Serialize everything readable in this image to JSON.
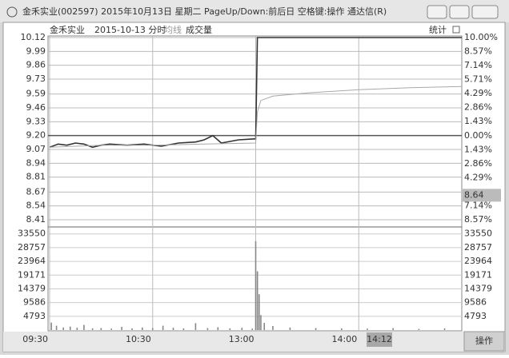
{
  "window": {
    "title": "金禾实业(002597) 2015年10月13日 星期二 PageUp/Down:前后日 空格键:操作 通达信(R)"
  },
  "header": {
    "stock": "金禾实业",
    "mode": "2015-10-13 分时",
    "avg_label": "均线",
    "vol_label": "成交量",
    "stats": "统计"
  },
  "chart_data": [
    {
      "type": "line",
      "ylim": [
        8.41,
        10.12
      ],
      "yticks": [
        10.12,
        9.99,
        9.86,
        9.73,
        9.59,
        9.46,
        9.33,
        {
          "value": 9.2,
          "label": "9.20"
        },
        9.07,
        8.94,
        8.81,
        8.67,
        8.54,
        8.41
      ],
      "y2lim": [
        -8.57,
        10
      ],
      "y2ticks": [
        {
          "value": 10,
          "label": "10.00%"
        },
        {
          "value": 8.57,
          "label": "8.57%"
        },
        {
          "value": 7.14,
          "label": "7.14%"
        },
        {
          "value": 5.71,
          "label": "5.71%"
        },
        {
          "value": 4.29,
          "label": "4.29%"
        },
        {
          "value": 2.86,
          "label": "2.86%"
        },
        {
          "value": 1.43,
          "label": "1.43%"
        },
        {
          "value": 0,
          "label": "0.00%"
        },
        {
          "value": -1.43,
          "label": "1.43%"
        },
        {
          "value": -2.86,
          "label": "2.86%"
        },
        {
          "value": -4.29,
          "label": "4.29%"
        },
        {
          "value": -7.14,
          "label": "7.14%"
        },
        {
          "value": -8.57,
          "label": "8.57%"
        }
      ],
      "crosshair": {
        "time": "14:12",
        "price": 8.64
      },
      "series": [
        {
          "color": "#333333",
          "x": [
            "09:30",
            "09:35",
            "09:40",
            "09:45",
            "09:50",
            "09:55",
            "10:00",
            "10:05",
            "10:15",
            "10:25",
            "10:35",
            "10:45",
            "10:55",
            "11:00",
            "11:05",
            "11:10",
            "11:20",
            "11:30",
            "13:01",
            "15:00"
          ],
          "values": [
            9.09,
            9.12,
            9.11,
            9.13,
            9.12,
            9.09,
            9.11,
            9.12,
            9.11,
            9.12,
            9.1,
            9.13,
            9.14,
            9.16,
            9.2,
            9.13,
            9.16,
            9.17,
            10.12,
            10.12
          ]
        },
        {
          "color": "#a8a8a8",
          "x": [
            "09:30",
            "10:00",
            "10:30",
            "11:00",
            "11:30",
            "13:01",
            "13:03",
            "13:10",
            "13:30",
            "14:00",
            "14:30",
            "15:00"
          ],
          "values": [
            9.09,
            9.11,
            9.11,
            9.12,
            9.13,
            9.42,
            9.53,
            9.57,
            9.6,
            9.63,
            9.65,
            9.66
          ]
        }
      ]
    },
    {
      "type": "bar",
      "ylim": [
        0,
        35700
      ],
      "yticks": [
        33550,
        28757,
        23964,
        19171,
        14379,
        9586,
        4793
      ],
      "xticks": [
        "09:30",
        "10:30",
        "13:00",
        "14:00"
      ],
      "color": "#888888",
      "x": [
        "09:31",
        "09:34",
        "09:38",
        "09:42",
        "09:46",
        "09:50",
        "09:55",
        "10:00",
        "10:06",
        "10:12",
        "10:18",
        "10:24",
        "10:30",
        "10:36",
        "10:42",
        "10:48",
        "10:55",
        "11:02",
        "11:08",
        "11:15",
        "11:22",
        "11:28",
        "13:00",
        "13:01",
        "13:02",
        "13:03",
        "13:05",
        "13:10",
        "13:20",
        "13:35",
        "13:50",
        "14:05",
        "14:20",
        "14:35",
        "14:50"
      ],
      "values": [
        2600,
        1500,
        900,
        1200,
        800,
        1800,
        600,
        700,
        500,
        1100,
        600,
        900,
        700,
        1500,
        800,
        600,
        2400,
        700,
        1000,
        600,
        800,
        500,
        31000,
        20500,
        12500,
        5200,
        2500,
        1400,
        900,
        700,
        600,
        500,
        700,
        400,
        600
      ]
    }
  ],
  "footer": {
    "action": "操作"
  }
}
